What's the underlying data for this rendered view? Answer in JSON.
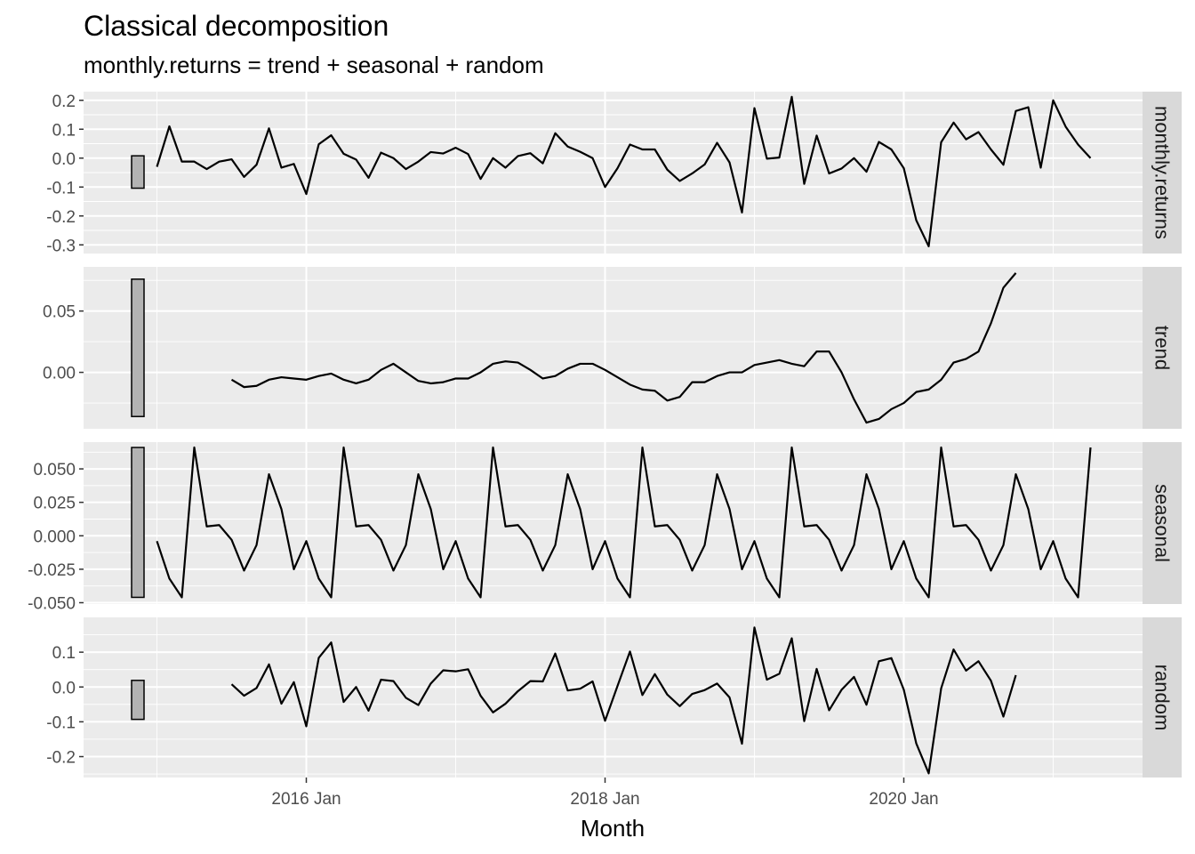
{
  "chart_data": {
    "type": "line",
    "title": "Classical decomposition",
    "subtitle": "monthly.returns = trend + seasonal + random",
    "xlabel": "Month",
    "x_start": "2015-01",
    "x_ticks": [
      {
        "label": "2016 Jan",
        "month": "2016-01"
      },
      {
        "label": "2018 Jan",
        "month": "2018-01"
      },
      {
        "label": "2020 Jan",
        "month": "2020-01"
      }
    ],
    "x_minor_ticks": [
      "2015-01",
      "2017-01",
      "2019-01",
      "2021-01"
    ],
    "grid": true,
    "panels": [
      {
        "name": "monthly.returns",
        "ylim": [
          -0.33,
          0.23
        ],
        "yticks": [
          {
            "value": 0.2,
            "label": "0.2"
          },
          {
            "value": 0.1,
            "label": "0.1"
          },
          {
            "value": 0.0,
            "label": "0.0"
          },
          {
            "value": -0.1,
            "label": "-0.1"
          },
          {
            "value": -0.2,
            "label": "-0.2"
          },
          {
            "value": -0.3,
            "label": "-0.3"
          }
        ],
        "scale_bar": [
          -0.104,
          0.008
        ],
        "values": [
          -0.03,
          0.11,
          -0.012,
          -0.012,
          -0.038,
          -0.012,
          -0.004,
          -0.065,
          -0.023,
          0.103,
          -0.033,
          -0.02,
          -0.124,
          0.048,
          0.079,
          0.015,
          -0.005,
          -0.068,
          0.019,
          0.0,
          -0.038,
          -0.012,
          0.021,
          0.016,
          0.036,
          0.014,
          -0.072,
          0.0,
          -0.033,
          0.007,
          0.017,
          -0.018,
          0.086,
          0.04,
          0.022,
          0.0,
          -0.1,
          -0.035,
          0.047,
          0.03,
          0.03,
          -0.04,
          -0.079,
          -0.053,
          -0.022,
          0.053,
          -0.015,
          -0.188,
          0.173,
          -0.002,
          0.002,
          0.212,
          -0.089,
          0.078,
          -0.053,
          -0.036,
          0.0,
          -0.047,
          0.056,
          0.03,
          -0.035,
          -0.215,
          -0.305,
          0.055,
          0.123,
          0.065,
          0.09,
          0.03,
          -0.023,
          0.163,
          0.176,
          -0.033,
          0.2,
          0.109,
          0.047,
          0.0
        ]
      },
      {
        "name": "trend",
        "ylim": [
          -0.046,
          0.086
        ],
        "yticks": [
          {
            "value": 0.05,
            "label": "0.05"
          },
          {
            "value": 0.0,
            "label": "0.00"
          }
        ],
        "scale_bar": [
          -0.036,
          0.076
        ],
        "values": [
          null,
          null,
          null,
          null,
          null,
          null,
          -0.006,
          -0.012,
          -0.011,
          -0.006,
          -0.004,
          -0.005,
          -0.006,
          -0.003,
          -0.001,
          -0.006,
          -0.009,
          -0.006,
          0.002,
          0.007,
          0.0,
          -0.007,
          -0.009,
          -0.008,
          -0.005,
          -0.005,
          0.0,
          0.007,
          0.009,
          0.008,
          0.002,
          -0.005,
          -0.003,
          0.003,
          0.007,
          0.007,
          0.002,
          -0.004,
          -0.01,
          -0.014,
          -0.015,
          -0.023,
          -0.02,
          -0.008,
          -0.008,
          -0.003,
          0.0,
          0.0,
          0.006,
          0.008,
          0.01,
          0.007,
          0.005,
          0.017,
          0.017,
          0.0,
          -0.022,
          -0.041,
          -0.038,
          -0.03,
          -0.025,
          -0.016,
          -0.014,
          -0.006,
          0.008,
          0.011,
          0.017,
          0.04,
          0.069,
          0.081,
          null,
          null,
          null,
          null,
          null,
          null
        ]
      },
      {
        "name": "seasonal",
        "ylim": [
          -0.051,
          0.07
        ],
        "yticks": [
          {
            "value": 0.05,
            "label": "0.050"
          },
          {
            "value": 0.025,
            "label": "0.025"
          },
          {
            "value": 0.0,
            "label": "0.000"
          },
          {
            "value": -0.025,
            "label": "-0.025"
          },
          {
            "value": -0.05,
            "label": "-0.050"
          }
        ],
        "scale_bar": [
          -0.046,
          0.066
        ],
        "values": [
          -0.004,
          -0.032,
          -0.046,
          0.066,
          0.007,
          0.008,
          -0.003,
          -0.026,
          -0.007,
          0.046,
          0.02,
          -0.025,
          -0.004,
          -0.032,
          -0.046,
          0.066,
          0.007,
          0.008,
          -0.003,
          -0.026,
          -0.007,
          0.046,
          0.02,
          -0.025,
          -0.004,
          -0.032,
          -0.046,
          0.066,
          0.007,
          0.008,
          -0.003,
          -0.026,
          -0.007,
          0.046,
          0.02,
          -0.025,
          -0.004,
          -0.032,
          -0.046,
          0.066,
          0.007,
          0.008,
          -0.003,
          -0.026,
          -0.007,
          0.046,
          0.02,
          -0.025,
          -0.004,
          -0.032,
          -0.046,
          0.066,
          0.007,
          0.008,
          -0.003,
          -0.026,
          -0.007,
          0.046,
          0.02,
          -0.025,
          -0.004,
          -0.032,
          -0.046,
          0.066,
          0.007,
          0.008,
          -0.003,
          -0.026,
          -0.007,
          0.046,
          0.02,
          -0.025,
          -0.004,
          -0.032,
          -0.046,
          0.066
        ]
      },
      {
        "name": "random",
        "ylim": [
          -0.26,
          0.2
        ],
        "yticks": [
          {
            "value": 0.1,
            "label": "0.1"
          },
          {
            "value": 0.0,
            "label": "0.0"
          },
          {
            "value": -0.1,
            "label": "-0.1"
          },
          {
            "value": -0.2,
            "label": "-0.2"
          }
        ],
        "scale_bar": [
          -0.093,
          0.019
        ],
        "values": [
          null,
          null,
          null,
          null,
          null,
          null,
          0.008,
          -0.025,
          -0.003,
          0.065,
          -0.048,
          0.014,
          -0.113,
          0.084,
          0.128,
          -0.043,
          0.0,
          -0.068,
          0.021,
          0.017,
          -0.031,
          -0.052,
          0.01,
          0.048,
          0.045,
          0.051,
          -0.025,
          -0.073,
          -0.048,
          -0.012,
          0.017,
          0.016,
          0.096,
          -0.01,
          -0.005,
          0.016,
          -0.097,
          0.003,
          0.102,
          -0.023,
          0.037,
          -0.022,
          -0.055,
          -0.02,
          -0.009,
          0.01,
          -0.03,
          -0.163,
          0.171,
          0.021,
          0.038,
          0.14,
          -0.098,
          0.052,
          -0.067,
          -0.008,
          0.029,
          -0.051,
          0.074,
          0.083,
          -0.008,
          -0.162,
          -0.248,
          -0.004,
          0.108,
          0.047,
          0.074,
          0.018,
          -0.085,
          0.034,
          null,
          null,
          null,
          null,
          null,
          null
        ]
      }
    ]
  }
}
